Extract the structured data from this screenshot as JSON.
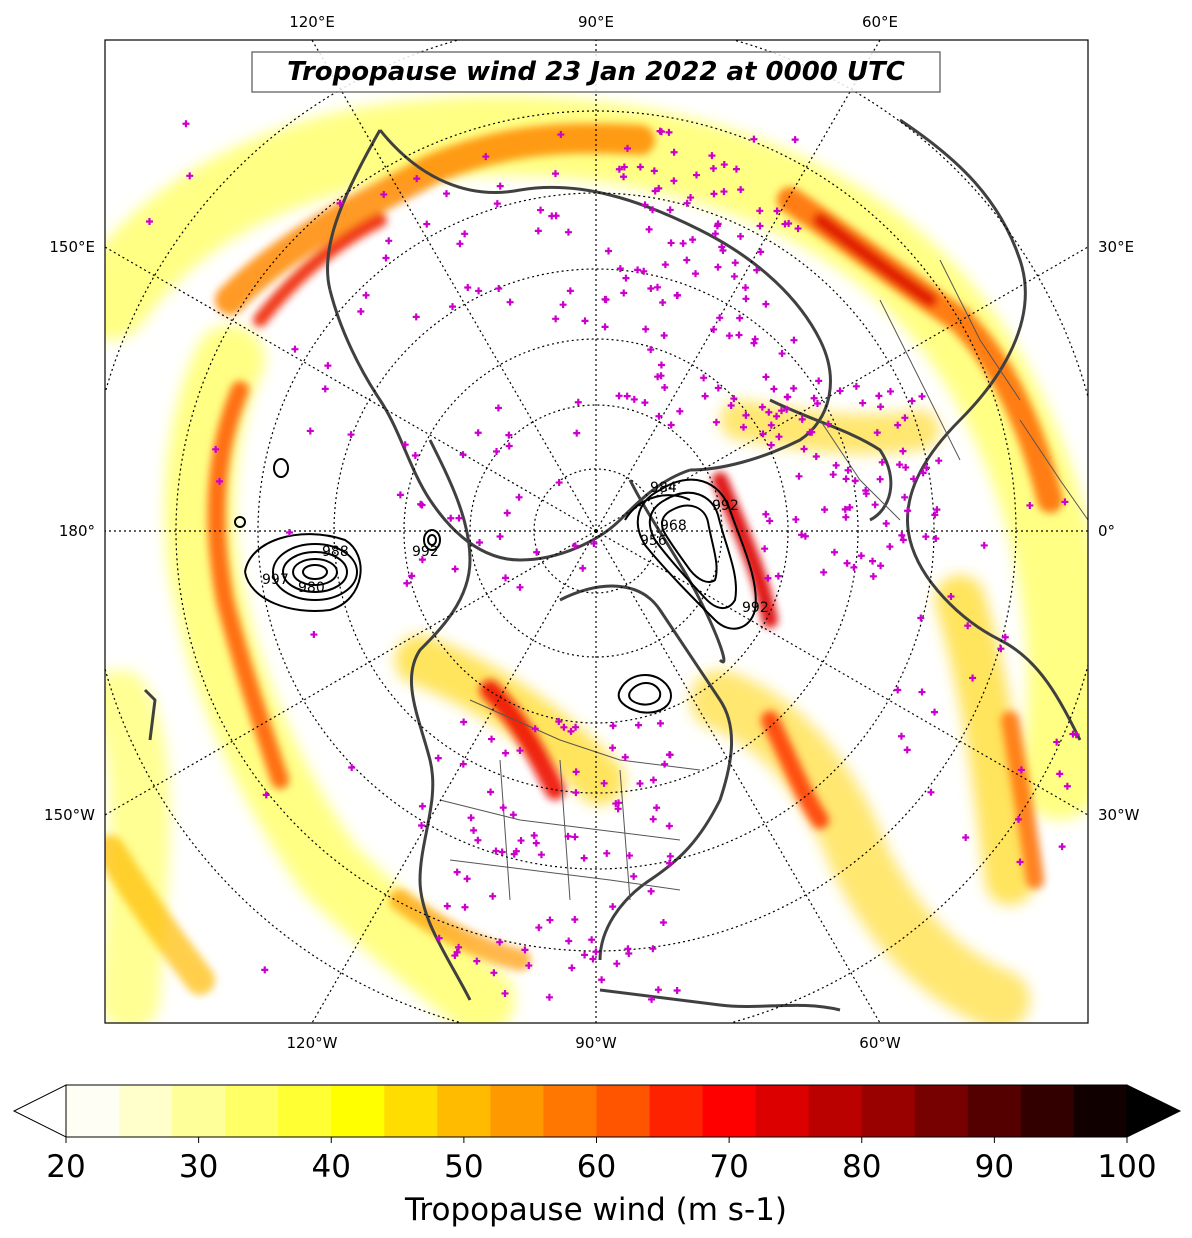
{
  "title": "Tropopause wind 23 Jan 2022 at 0000 UTC",
  "top_labels": [
    "120°E",
    "90°E",
    "60°E"
  ],
  "bottom_labels": [
    "120°W",
    "90°W",
    "60°W"
  ],
  "left_labels": [
    "150°E",
    "180°",
    "150°W"
  ],
  "right_labels": [
    "30°E",
    "0°",
    "30°W"
  ],
  "pressure_labels": [
    "988",
    "980",
    "997",
    "992",
    "984",
    "968",
    "956",
    "992",
    "992"
  ],
  "colorbar": {
    "min": 20,
    "max": 100,
    "ticks": [
      "20",
      "30",
      "40",
      "50",
      "60",
      "70",
      "80",
      "90",
      "100"
    ],
    "label": "Tropopause wind (m s-1)",
    "colormap": "hot_r",
    "colors": [
      "#fffef5",
      "#ffffcc",
      "#ffff99",
      "#ffff66",
      "#ffff33",
      "#ffff00",
      "#ffdd00",
      "#ffbb00",
      "#ff9900",
      "#ff7700",
      "#ff5500",
      "#ff2200",
      "#ff0000",
      "#dd0000",
      "#bb0000",
      "#990000",
      "#770000",
      "#550000",
      "#330000",
      "#110000"
    ]
  },
  "station_marker_color": "#cc00cc",
  "coastline_color": "#404040"
}
